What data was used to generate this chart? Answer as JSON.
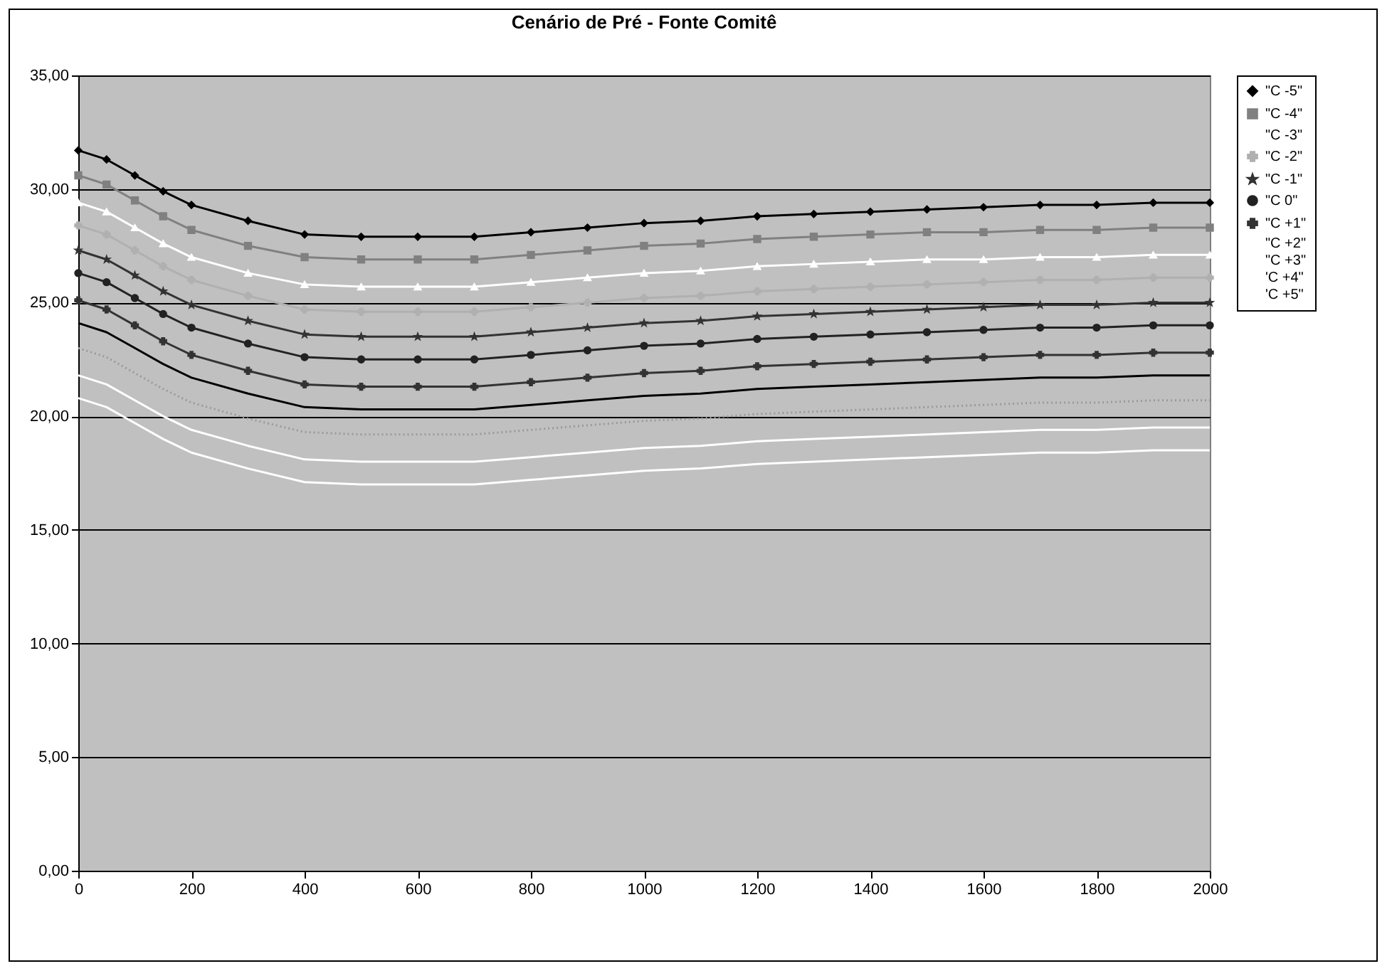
{
  "chart_data": {
    "type": "line",
    "title": "Cenário de Pré - Fonte Comitê",
    "x": [
      0,
      50,
      100,
      150,
      200,
      300,
      400,
      500,
      600,
      700,
      800,
      900,
      1000,
      1100,
      1200,
      1300,
      1400,
      1500,
      1600,
      1700,
      1800,
      1900,
      2000
    ],
    "series": [
      {
        "name": "\"C -5\"",
        "color": "#000000",
        "marker": "diamond",
        "values": [
          31.7,
          31.3,
          30.6,
          29.9,
          29.3,
          28.6,
          28.0,
          27.9,
          27.9,
          27.9,
          28.1,
          28.3,
          28.5,
          28.6,
          28.8,
          28.9,
          29.0,
          29.1,
          29.2,
          29.3,
          29.3,
          29.4,
          29.4
        ]
      },
      {
        "name": "\"C -4\"",
        "color": "#808080",
        "marker": "square",
        "values": [
          30.6,
          30.2,
          29.5,
          28.8,
          28.2,
          27.5,
          27.0,
          26.9,
          26.9,
          26.9,
          27.1,
          27.3,
          27.5,
          27.6,
          27.8,
          27.9,
          28.0,
          28.1,
          28.1,
          28.2,
          28.2,
          28.3,
          28.3
        ]
      },
      {
        "name": "\"C -3\"",
        "color": "#ffffff",
        "marker": "triangle",
        "values": [
          29.4,
          29.0,
          28.3,
          27.6,
          27.0,
          26.3,
          25.8,
          25.7,
          25.7,
          25.7,
          25.9,
          26.1,
          26.3,
          26.4,
          26.6,
          26.7,
          26.8,
          26.9,
          26.9,
          27.0,
          27.0,
          27.1,
          27.1
        ]
      },
      {
        "name": "\"C -2\"",
        "color": "#b0b0b0",
        "marker": "cross",
        "values": [
          28.4,
          28.0,
          27.3,
          26.6,
          26.0,
          25.3,
          24.7,
          24.6,
          24.6,
          24.6,
          24.8,
          25.0,
          25.2,
          25.3,
          25.5,
          25.6,
          25.7,
          25.8,
          25.9,
          26.0,
          26.0,
          26.1,
          26.1
        ]
      },
      {
        "name": "\"C -1\"",
        "color": "#333333",
        "marker": "star",
        "values": [
          27.3,
          26.9,
          26.2,
          25.5,
          24.9,
          24.2,
          23.6,
          23.5,
          23.5,
          23.5,
          23.7,
          23.9,
          24.1,
          24.2,
          24.4,
          24.5,
          24.6,
          24.7,
          24.8,
          24.9,
          24.9,
          25.0,
          25.0
        ]
      },
      {
        "name": "\"C 0\"",
        "color": "#222222",
        "marker": "circle",
        "values": [
          26.3,
          25.9,
          25.2,
          24.5,
          23.9,
          23.2,
          22.6,
          22.5,
          22.5,
          22.5,
          22.7,
          22.9,
          23.1,
          23.2,
          23.4,
          23.5,
          23.6,
          23.7,
          23.8,
          23.9,
          23.9,
          24.0,
          24.0
        ]
      },
      {
        "name": "\"C +1\"",
        "color": "#333333",
        "marker": "cross",
        "values": [
          25.1,
          24.7,
          24.0,
          23.3,
          22.7,
          22.0,
          21.4,
          21.3,
          21.3,
          21.3,
          21.5,
          21.7,
          21.9,
          22.0,
          22.2,
          22.3,
          22.4,
          22.5,
          22.6,
          22.7,
          22.7,
          22.8,
          22.8
        ]
      },
      {
        "name": "\"C +2\"",
        "color": "#000000",
        "marker": "none",
        "values": [
          24.1,
          23.7,
          23.0,
          22.3,
          21.7,
          21.0,
          20.4,
          20.3,
          20.3,
          20.3,
          20.5,
          20.7,
          20.9,
          21.0,
          21.2,
          21.3,
          21.4,
          21.5,
          21.6,
          21.7,
          21.7,
          21.8,
          21.8
        ]
      },
      {
        "name": "\"C +3\"",
        "color": "#999999",
        "marker": "none",
        "line_style": "dotted",
        "values": [
          23.0,
          22.6,
          21.9,
          21.2,
          20.6,
          19.9,
          19.3,
          19.2,
          19.2,
          19.2,
          19.4,
          19.6,
          19.8,
          19.9,
          20.1,
          20.2,
          20.3,
          20.4,
          20.5,
          20.6,
          20.6,
          20.7,
          20.7
        ]
      },
      {
        "name": "'C +4\"",
        "color": "#ffffff",
        "marker": "none",
        "values": [
          21.8,
          21.4,
          20.7,
          20.0,
          19.4,
          18.7,
          18.1,
          18.0,
          18.0,
          18.0,
          18.2,
          18.4,
          18.6,
          18.7,
          18.9,
          19.0,
          19.1,
          19.2,
          19.3,
          19.4,
          19.4,
          19.5,
          19.5
        ]
      },
      {
        "name": "'C +5\"",
        "color": "#ffffff",
        "marker": "none",
        "values": [
          20.8,
          20.4,
          19.7,
          19.0,
          18.4,
          17.7,
          17.1,
          17.0,
          17.0,
          17.0,
          17.2,
          17.4,
          17.6,
          17.7,
          17.9,
          18.0,
          18.1,
          18.2,
          18.3,
          18.4,
          18.4,
          18.5,
          18.5
        ]
      }
    ],
    "xlim": [
      0,
      2000
    ],
    "xticks": [
      0,
      200,
      400,
      600,
      800,
      1000,
      1200,
      1400,
      1600,
      1800,
      2000
    ],
    "ylim": [
      0,
      35
    ],
    "yticks": [
      {
        "value": 0,
        "label": "0,00"
      },
      {
        "value": 5,
        "label": "5,00"
      },
      {
        "value": 10,
        "label": "10,00"
      },
      {
        "value": 15,
        "label": "15,00"
      },
      {
        "value": 20,
        "label": "20,00"
      },
      {
        "value": 25,
        "label": "25,00"
      },
      {
        "value": 30,
        "label": "30,00"
      },
      {
        "value": 35,
        "label": "35,00"
      }
    ],
    "grid": "y",
    "legend": "right"
  }
}
